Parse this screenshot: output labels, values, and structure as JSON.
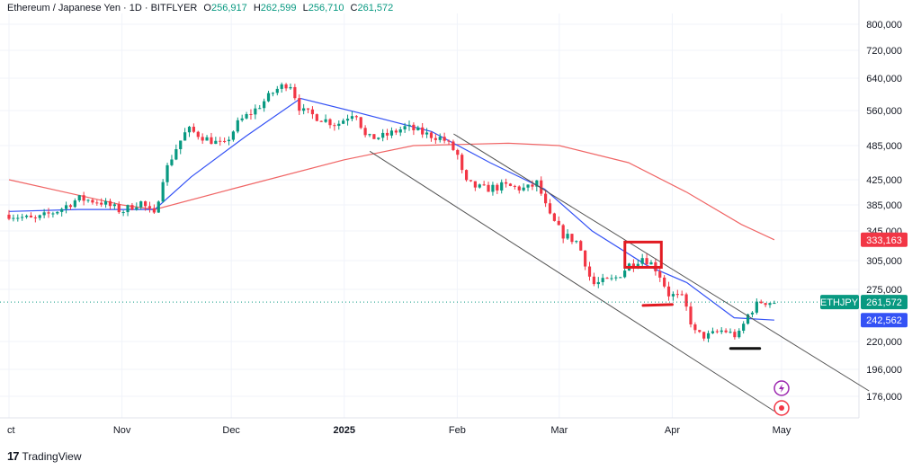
{
  "header": {
    "symbol": "Ethereum / Japanese Yen · 1D · BITFLYER",
    "o_label": "O",
    "o": "256,917",
    "h_label": "H",
    "h": "262,599",
    "l_label": "L",
    "l": "256,710",
    "c_label": "C",
    "c": "261,572"
  },
  "footer": {
    "brand": "TradingView",
    "logo": "17"
  },
  "colors": {
    "up": "#089981",
    "down": "#f23645",
    "ma_fast": "#3452f5",
    "ma_slow": "#f06666",
    "channel": "#555555",
    "price_tag": "#089981",
    "ma_slow_tag": "#f23645",
    "ma_fast_tag": "#3452f5"
  },
  "chart_data": {
    "type": "candlestick",
    "y_ticks": [
      "800,000",
      "720,000",
      "640,000",
      "560,000",
      "485,000",
      "425,000",
      "385,000",
      "345,000",
      "305,000",
      "275,000",
      "220,000",
      "196,000",
      "176,000"
    ],
    "y_tick_values": [
      800000,
      720000,
      640000,
      560000,
      485000,
      425000,
      385000,
      345000,
      305000,
      275000,
      220000,
      196000,
      176000
    ],
    "x_ticks": [
      "ct",
      "Nov",
      "Dec",
      "2025",
      "Feb",
      "Mar",
      "Apr",
      "May"
    ],
    "x_tick_dates": [
      "2024-10-01",
      "2024-11-01",
      "2024-12-01",
      "2025-01-01",
      "2025-02-01",
      "2025-03-01",
      "2025-04-01",
      "2025-05-01"
    ],
    "price_labels": [
      {
        "name": "ETHJPY",
        "value": "261,572",
        "kind": "price"
      },
      {
        "name": "",
        "value": "333,163",
        "kind": "ma_slow"
      },
      {
        "name": "",
        "value": "242,562",
        "kind": "ma_fast"
      }
    ],
    "closes": [
      {
        "d": "2024-10-01",
        "c": 370000
      },
      {
        "d": "2024-10-08",
        "c": 362000
      },
      {
        "d": "2024-10-15",
        "c": 378000
      },
      {
        "d": "2024-10-20",
        "c": 395000
      },
      {
        "d": "2024-10-26",
        "c": 390000
      },
      {
        "d": "2024-11-01",
        "c": 375000
      },
      {
        "d": "2024-11-06",
        "c": 390000
      },
      {
        "d": "2024-11-10",
        "c": 367000
      },
      {
        "d": "2024-11-12",
        "c": 425000
      },
      {
        "d": "2024-11-15",
        "c": 470000
      },
      {
        "d": "2024-11-19",
        "c": 520000
      },
      {
        "d": "2024-11-24",
        "c": 500000
      },
      {
        "d": "2024-11-29",
        "c": 485000
      },
      {
        "d": "2024-12-03",
        "c": 535000
      },
      {
        "d": "2024-12-08",
        "c": 565000
      },
      {
        "d": "2024-12-13",
        "c": 610000
      },
      {
        "d": "2024-12-17",
        "c": 630000
      },
      {
        "d": "2024-12-20",
        "c": 560000
      },
      {
        "d": "2024-12-25",
        "c": 545000
      },
      {
        "d": "2024-12-30",
        "c": 530000
      },
      {
        "d": "2025-01-04",
        "c": 560000
      },
      {
        "d": "2025-01-07",
        "c": 500000
      },
      {
        "d": "2025-01-12",
        "c": 505000
      },
      {
        "d": "2025-01-18",
        "c": 525000
      },
      {
        "d": "2025-01-23",
        "c": 510000
      },
      {
        "d": "2025-01-28",
        "c": 500000
      },
      {
        "d": "2025-02-01",
        "c": 470000
      },
      {
        "d": "2025-02-03",
        "c": 420000
      },
      {
        "d": "2025-02-08",
        "c": 410000
      },
      {
        "d": "2025-02-14",
        "c": 415000
      },
      {
        "d": "2025-02-20",
        "c": 410000
      },
      {
        "d": "2025-02-23",
        "c": 420000
      },
      {
        "d": "2025-02-26",
        "c": 370000
      },
      {
        "d": "2025-03-02",
        "c": 340000
      },
      {
        "d": "2025-03-06",
        "c": 330000
      },
      {
        "d": "2025-03-10",
        "c": 280000
      },
      {
        "d": "2025-03-16",
        "c": 285000
      },
      {
        "d": "2025-03-20",
        "c": 300000
      },
      {
        "d": "2025-03-24",
        "c": 310000
      },
      {
        "d": "2025-03-28",
        "c": 295000
      },
      {
        "d": "2025-03-31",
        "c": 270000
      },
      {
        "d": "2025-04-04",
        "c": 265000
      },
      {
        "d": "2025-04-07",
        "c": 230000
      },
      {
        "d": "2025-04-10",
        "c": 225000
      },
      {
        "d": "2025-04-15",
        "c": 232000
      },
      {
        "d": "2025-04-19",
        "c": 225000
      },
      {
        "d": "2025-04-22",
        "c": 250000
      },
      {
        "d": "2025-04-25",
        "c": 262000
      },
      {
        "d": "2025-04-29",
        "c": 261572
      }
    ],
    "ma_fast_points": [
      {
        "d": "2024-10-01",
        "v": 375000
      },
      {
        "d": "2024-10-20",
        "v": 378000
      },
      {
        "d": "2024-11-10",
        "v": 378000
      },
      {
        "d": "2024-11-20",
        "v": 430000
      },
      {
        "d": "2024-12-05",
        "v": 505000
      },
      {
        "d": "2024-12-20",
        "v": 590000
      },
      {
        "d": "2025-01-05",
        "v": 555000
      },
      {
        "d": "2025-01-25",
        "v": 515000
      },
      {
        "d": "2025-02-10",
        "v": 455000
      },
      {
        "d": "2025-02-25",
        "v": 410000
      },
      {
        "d": "2025-03-10",
        "v": 345000
      },
      {
        "d": "2025-03-25",
        "v": 300000
      },
      {
        "d": "2025-04-05",
        "v": 282000
      },
      {
        "d": "2025-04-18",
        "v": 245000
      },
      {
        "d": "2025-04-29",
        "v": 242562
      }
    ],
    "ma_slow_points": [
      {
        "d": "2024-10-01",
        "v": 425000
      },
      {
        "d": "2024-11-01",
        "v": 385000
      },
      {
        "d": "2024-11-10",
        "v": 378000
      },
      {
        "d": "2024-12-01",
        "v": 410000
      },
      {
        "d": "2025-01-01",
        "v": 460000
      },
      {
        "d": "2025-01-20",
        "v": 485000
      },
      {
        "d": "2025-02-15",
        "v": 490000
      },
      {
        "d": "2025-03-01",
        "v": 485000
      },
      {
        "d": "2025-03-20",
        "v": 455000
      },
      {
        "d": "2025-04-05",
        "v": 405000
      },
      {
        "d": "2025-04-20",
        "v": 355000
      },
      {
        "d": "2025-04-29",
        "v": 333163
      }
    ],
    "annotations": [
      {
        "type": "channel-upper",
        "from": {
          "d": "2025-01-31",
          "v": 510000
        },
        "to": {
          "d": "2025-05-25",
          "v": 180000
        }
      },
      {
        "type": "channel-lower",
        "from": {
          "d": "2025-01-08",
          "v": 475000
        },
        "to": {
          "d": "2025-04-29",
          "v": 165000
        }
      },
      {
        "type": "box",
        "from": {
          "d": "2025-03-19",
          "v": 330000
        },
        "to": {
          "d": "2025-03-29",
          "v": 298000
        }
      },
      {
        "type": "red-line",
        "from": {
          "d": "2025-03-24",
          "v": 258000
        },
        "to": {
          "d": "2025-04-01",
          "v": 259000
        }
      },
      {
        "type": "black-line",
        "from": {
          "d": "2025-04-17",
          "v": 214000
        },
        "to": {
          "d": "2025-04-25",
          "v": 214000
        }
      }
    ]
  }
}
